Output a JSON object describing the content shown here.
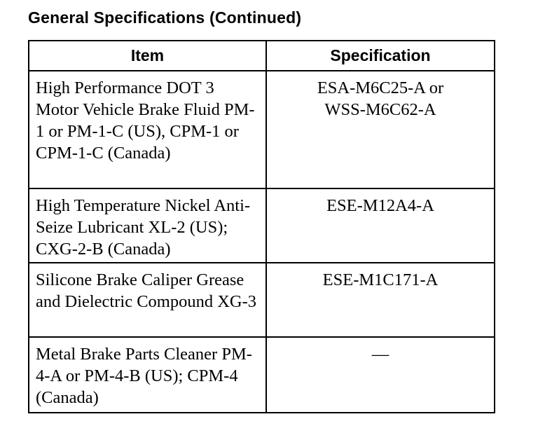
{
  "title": "General Specifications (Continued)",
  "table": {
    "headers": [
      "Item",
      "Specification"
    ],
    "rows": [
      {
        "item": "High Performance DOT 3 Motor Vehicle Brake Fluid PM-1 or PM-1-C (US), CPM-1 or CPM-1-C (Canada)",
        "spec": "ESA-M6C25-A or WSS-M6C62-A"
      },
      {
        "item": "High Temperature Nickel Anti-Seize Lubricant XL-2 (US); CXG-2-B (Canada)",
        "spec": "ESE-M12A4-A"
      },
      {
        "item": "Silicone Brake Caliper Grease and Dielectric Compound XG-3",
        "spec": "ESE-M1C171-A"
      },
      {
        "item": "Metal Brake Parts Cleaner PM-4-A or PM-4-B (US); CPM-4 (Canada)",
        "spec": "—"
      }
    ]
  }
}
